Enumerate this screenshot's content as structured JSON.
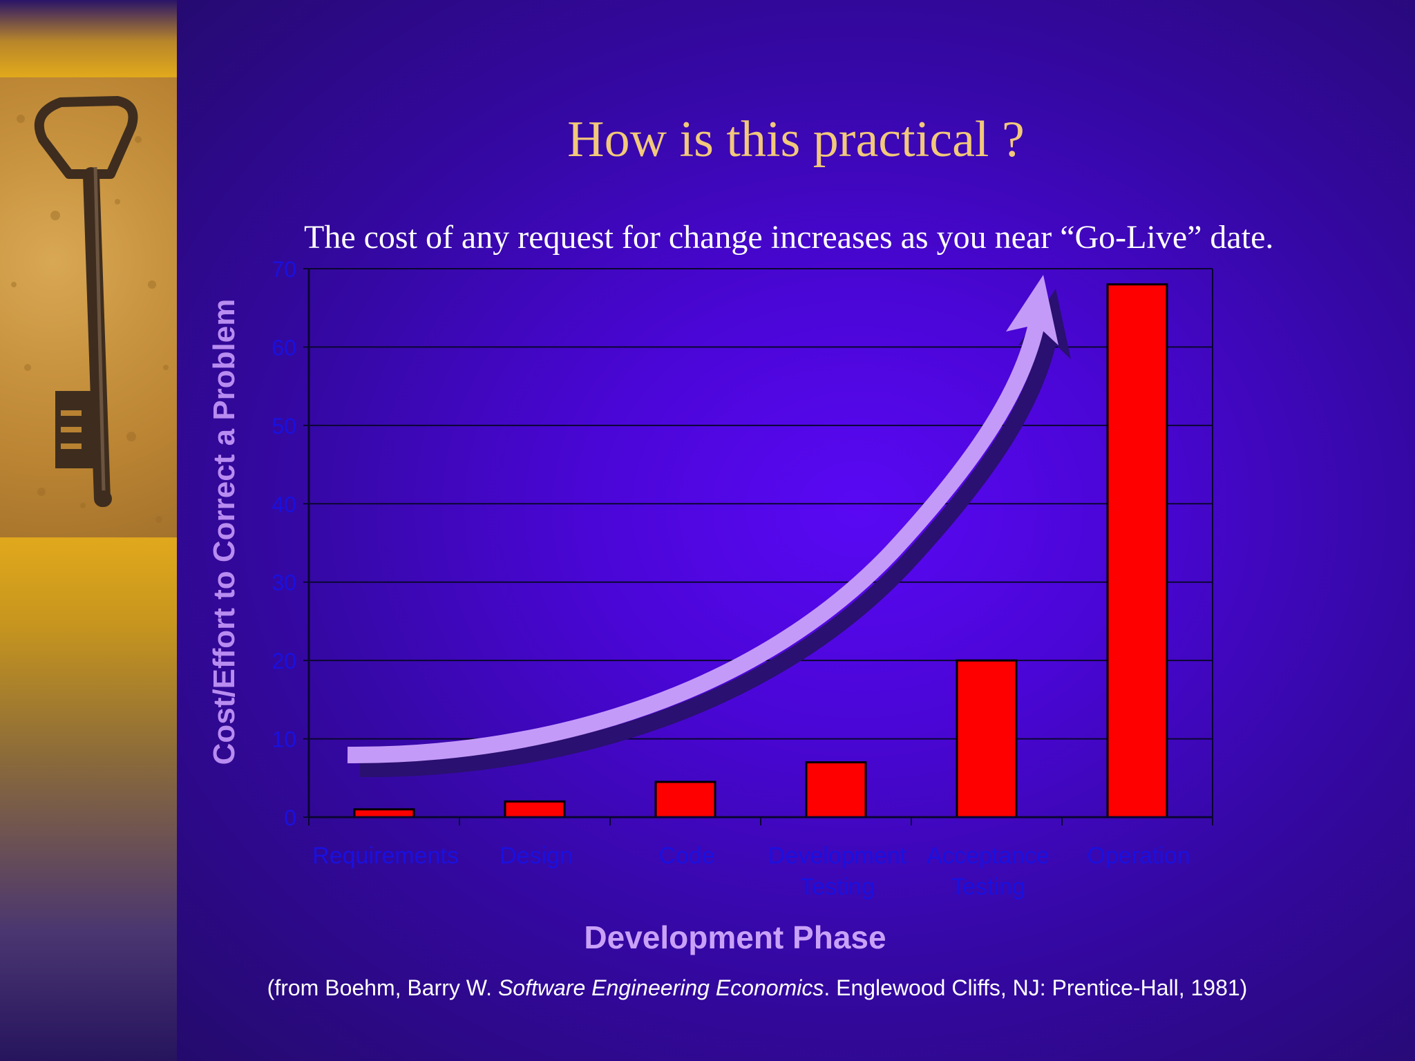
{
  "slide": {
    "title": "How is this practical ?",
    "subtitle": "The cost of any request for change increases as you near “Go-Live” date.",
    "citation_prefix": "(from Boehm, Barry W. ",
    "citation_title": "Software Engineering Economics",
    "citation_suffix": ". Englewood Cliffs, NJ:  Prentice-Hall, 1981)"
  },
  "colors": {
    "bar_fill": "#ff0000",
    "tick_label": "#1a10e0",
    "axis_title": "#c9a2f8",
    "arrow": "#c49af8",
    "title": "#f2c87a"
  },
  "icons": {
    "sidebar_image": "skeleton-key-icon"
  },
  "chart_data": {
    "type": "bar",
    "categories": [
      "Requirements",
      "Design",
      "Code",
      "Development Testing",
      "Acceptance Testing",
      "Operation"
    ],
    "category_lines": [
      [
        "Requirements"
      ],
      [
        "Design"
      ],
      [
        "Code"
      ],
      [
        "Development",
        "Testing"
      ],
      [
        "Acceptance",
        "Testing"
      ],
      [
        "Operation"
      ]
    ],
    "values": [
      1,
      2,
      4.5,
      7,
      20,
      68
    ],
    "xlabel": "Development Phase",
    "ylabel": "Cost/Effort  to Correct a Problem",
    "ylim": [
      0,
      70
    ],
    "yticks": [
      0,
      10,
      20,
      30,
      40,
      50,
      60,
      70
    ],
    "grid": true,
    "legend": "none"
  }
}
